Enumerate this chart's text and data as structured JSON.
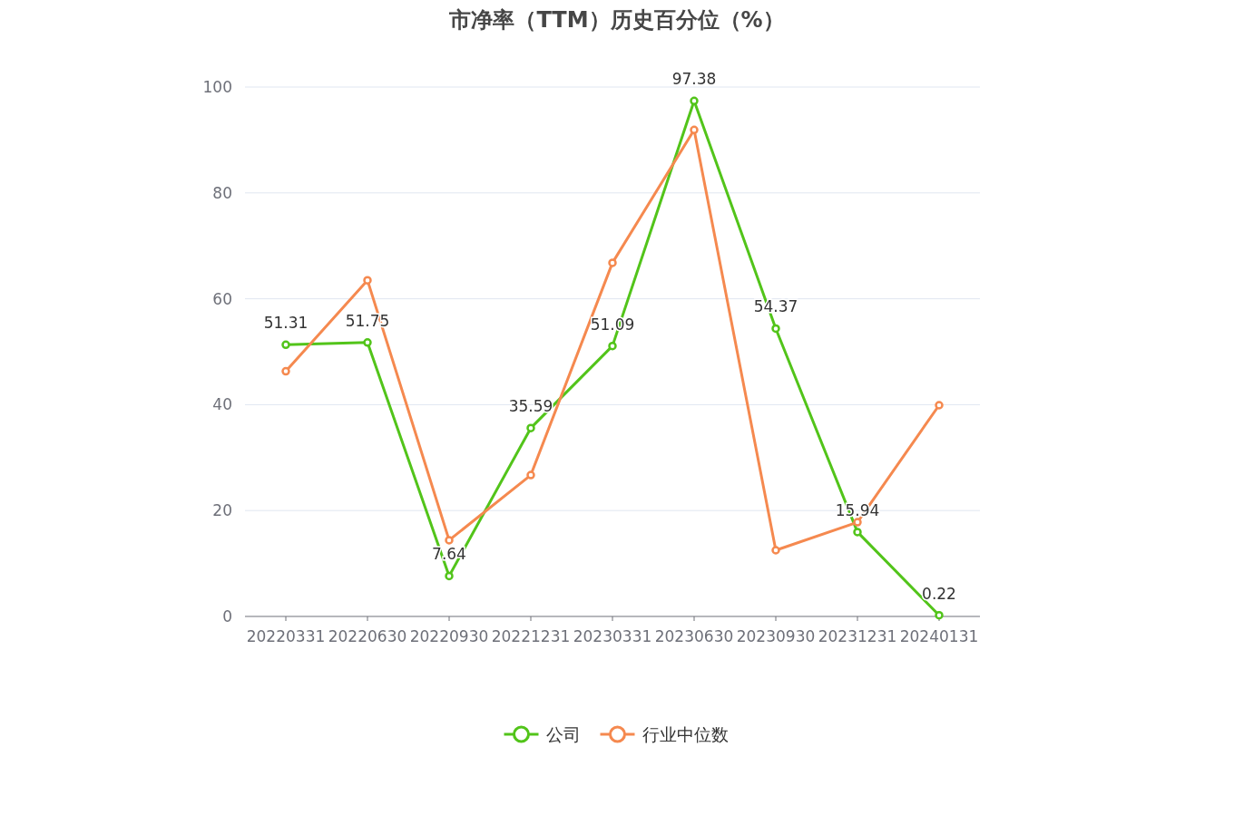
{
  "chart_data": {
    "type": "line",
    "title": "市净率（TTM）历史百分位（%）",
    "categories": [
      "20220331",
      "20220630",
      "20220930",
      "20221231",
      "20230331",
      "20230630",
      "20230930",
      "20231231",
      "20240131"
    ],
    "series": [
      {
        "name": "公司",
        "color": "#52c41a",
        "values": [
          51.31,
          51.75,
          7.64,
          35.59,
          51.09,
          97.38,
          54.37,
          15.94,
          0.22
        ],
        "value_labels": [
          "51.31",
          "51.75",
          "7.64",
          "35.59",
          "51.09",
          "97.38",
          "54.37",
          "15.94",
          "0.22"
        ]
      },
      {
        "name": "行业中位数",
        "color": "#f5894f",
        "values": [
          46.3,
          63.5,
          14.4,
          26.7,
          66.8,
          91.9,
          12.5,
          17.8,
          39.9
        ]
      }
    ],
    "ylim": [
      0,
      100
    ],
    "yticks": [
      0,
      20,
      40,
      60,
      80,
      100
    ],
    "grid": "y",
    "legend": "bottom",
    "marker": "circle",
    "line_style": "solid"
  }
}
